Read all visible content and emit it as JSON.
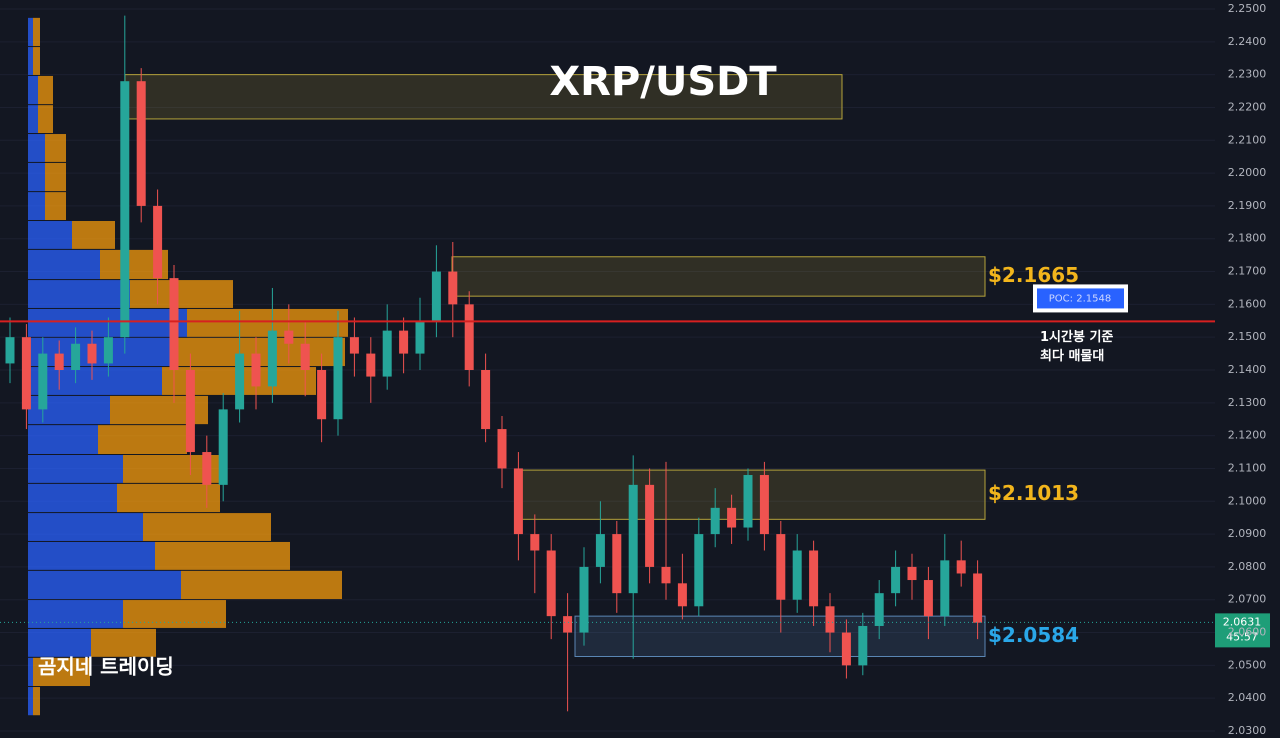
{
  "chart_data": {
    "type": "candlestick",
    "title": "XRP/USDT",
    "watermark": "곰지네 트레이딩",
    "ylim": [
      2.03,
      2.25
    ],
    "yticks": [
      {
        "value": 2.25,
        "label": "2.2500"
      },
      {
        "value": 2.24,
        "label": "2.2400"
      },
      {
        "value": 2.23,
        "label": "2.2300"
      },
      {
        "value": 2.22,
        "label": "2.2200"
      },
      {
        "value": 2.21,
        "label": "2.2100"
      },
      {
        "value": 2.2,
        "label": "2.2000"
      },
      {
        "value": 2.19,
        "label": "2.1900"
      },
      {
        "value": 2.18,
        "label": "2.1800"
      },
      {
        "value": 2.17,
        "label": "2.1700"
      },
      {
        "value": 2.16,
        "label": "2.1600"
      },
      {
        "value": 2.15,
        "label": "2.1500"
      },
      {
        "value": 2.14,
        "label": "2.1400"
      },
      {
        "value": 2.13,
        "label": "2.1300"
      },
      {
        "value": 2.12,
        "label": "2.1200"
      },
      {
        "value": 2.11,
        "label": "2.1100"
      },
      {
        "value": 2.1,
        "label": "2.1000"
      },
      {
        "value": 2.09,
        "label": "2.0900"
      },
      {
        "value": 2.08,
        "label": "2.0800"
      },
      {
        "value": 2.07,
        "label": "2.0700"
      },
      {
        "value": 2.06,
        "label": "2.0600"
      },
      {
        "value": 2.05,
        "label": "2.0500"
      },
      {
        "value": 2.04,
        "label": "2.0400"
      },
      {
        "value": 2.03,
        "label": "2.0300"
      }
    ],
    "grid": true,
    "up_color": "#26a69a",
    "down_color": "#ef5350",
    "open": [
      2.142,
      2.15,
      2.128,
      2.145,
      2.14,
      2.148,
      2.142,
      2.15,
      2.228,
      2.19,
      2.168,
      2.14,
      2.115,
      2.105,
      2.128,
      2.145,
      2.135,
      2.152,
      2.148,
      2.14,
      2.125,
      2.15,
      2.145,
      2.138,
      2.152,
      2.145,
      2.155,
      2.17,
      2.16,
      2.14,
      2.122,
      2.11,
      2.09,
      2.085,
      2.065,
      2.06,
      2.08,
      2.09,
      2.072,
      2.105,
      2.08,
      2.075,
      2.068,
      2.09,
      2.098,
      2.092,
      2.108,
      2.09,
      2.07,
      2.085,
      2.068,
      2.06,
      2.05,
      2.062,
      2.072,
      2.08,
      2.076,
      2.065,
      2.082,
      2.078
    ],
    "high": [
      2.156,
      2.154,
      2.15,
      2.149,
      2.153,
      2.152,
      2.156,
      2.248,
      2.232,
      2.195,
      2.172,
      2.145,
      2.12,
      2.133,
      2.158,
      2.15,
      2.165,
      2.16,
      2.155,
      2.145,
      2.158,
      2.156,
      2.15,
      2.16,
      2.156,
      2.162,
      2.178,
      2.179,
      2.164,
      2.145,
      2.126,
      2.115,
      2.096,
      2.09,
      2.072,
      2.086,
      2.1,
      2.094,
      2.114,
      2.11,
      2.112,
      2.084,
      2.095,
      2.104,
      2.102,
      2.11,
      2.112,
      2.094,
      2.09,
      2.088,
      2.072,
      2.064,
      2.066,
      2.076,
      2.085,
      2.084,
      2.08,
      2.09,
      2.088,
      2.082
    ],
    "low": [
      2.136,
      2.122,
      2.124,
      2.134,
      2.136,
      2.137,
      2.138,
      2.145,
      2.185,
      2.16,
      2.13,
      2.108,
      2.098,
      2.1,
      2.124,
      2.128,
      2.13,
      2.142,
      2.132,
      2.118,
      2.12,
      2.138,
      2.13,
      2.134,
      2.139,
      2.14,
      2.15,
      2.15,
      2.135,
      2.118,
      2.104,
      2.082,
      2.072,
      2.058,
      2.036,
      2.056,
      2.075,
      2.066,
      2.052,
      2.075,
      2.07,
      2.064,
      2.065,
      2.086,
      2.087,
      2.088,
      2.085,
      2.06,
      2.066,
      2.062,
      2.054,
      2.046,
      2.047,
      2.058,
      2.068,
      2.07,
      2.058,
      2.062,
      2.074,
      2.058
    ],
    "close": [
      2.15,
      2.128,
      2.145,
      2.14,
      2.148,
      2.142,
      2.15,
      2.228,
      2.19,
      2.168,
      2.14,
      2.115,
      2.105,
      2.128,
      2.145,
      2.135,
      2.152,
      2.148,
      2.14,
      2.125,
      2.15,
      2.145,
      2.138,
      2.152,
      2.145,
      2.155,
      2.17,
      2.16,
      2.14,
      2.122,
      2.11,
      2.09,
      2.085,
      2.065,
      2.06,
      2.08,
      2.09,
      2.072,
      2.105,
      2.08,
      2.075,
      2.068,
      2.09,
      2.098,
      2.092,
      2.108,
      2.09,
      2.07,
      2.085,
      2.068,
      2.06,
      2.05,
      2.062,
      2.072,
      2.08,
      2.076,
      2.065,
      2.082,
      2.078,
      2.063
    ],
    "volume_profile": {
      "price_top": [
        2.2473,
        2.2384,
        2.2296,
        2.2207,
        2.2119,
        2.2031,
        2.1942,
        2.1854,
        2.1766,
        2.1674,
        2.1586,
        2.1498,
        2.1409,
        2.1321,
        2.1232,
        2.1141,
        2.1053,
        2.0964,
        2.0876,
        2.0788,
        2.0699,
        2.0611,
        2.0523,
        2.0434
      ],
      "buy": [
        5,
        5,
        10,
        10,
        17,
        17,
        17,
        44,
        72,
        102,
        159,
        147,
        134,
        82,
        70,
        95,
        89,
        115,
        127,
        153,
        95,
        63,
        5,
        5
      ],
      "sell": [
        7,
        7,
        15,
        15,
        21,
        21,
        21,
        43,
        68,
        103,
        161,
        170,
        154,
        98,
        89,
        103,
        103,
        128,
        135,
        161,
        103,
        65,
        57,
        7
      ],
      "buy_color": "#2962ff",
      "sell_color": "#f59b0c"
    },
    "zones": [
      {
        "top": 2.23,
        "bottom": 2.2165,
        "color": "#b5a33a"
      },
      {
        "top": 2.1745,
        "bottom": 2.1625,
        "label": "$2.1665",
        "color": "#b5a33a"
      },
      {
        "top": 2.1095,
        "bottom": 2.0945,
        "label": "$2.1013",
        "color": "#b5a33a"
      },
      {
        "top": 2.065,
        "bottom": 2.0527,
        "label": "$2.0584",
        "color": "#5b86b5"
      }
    ],
    "poc": {
      "value": 2.1548,
      "label": "POC: 2.1548",
      "note": [
        "1시간봉 기준",
        "최다 매물대"
      ],
      "color": "#d62020"
    },
    "last_price": {
      "value": 2.0631,
      "label": "2.0631",
      "countdown": "45:57"
    }
  }
}
